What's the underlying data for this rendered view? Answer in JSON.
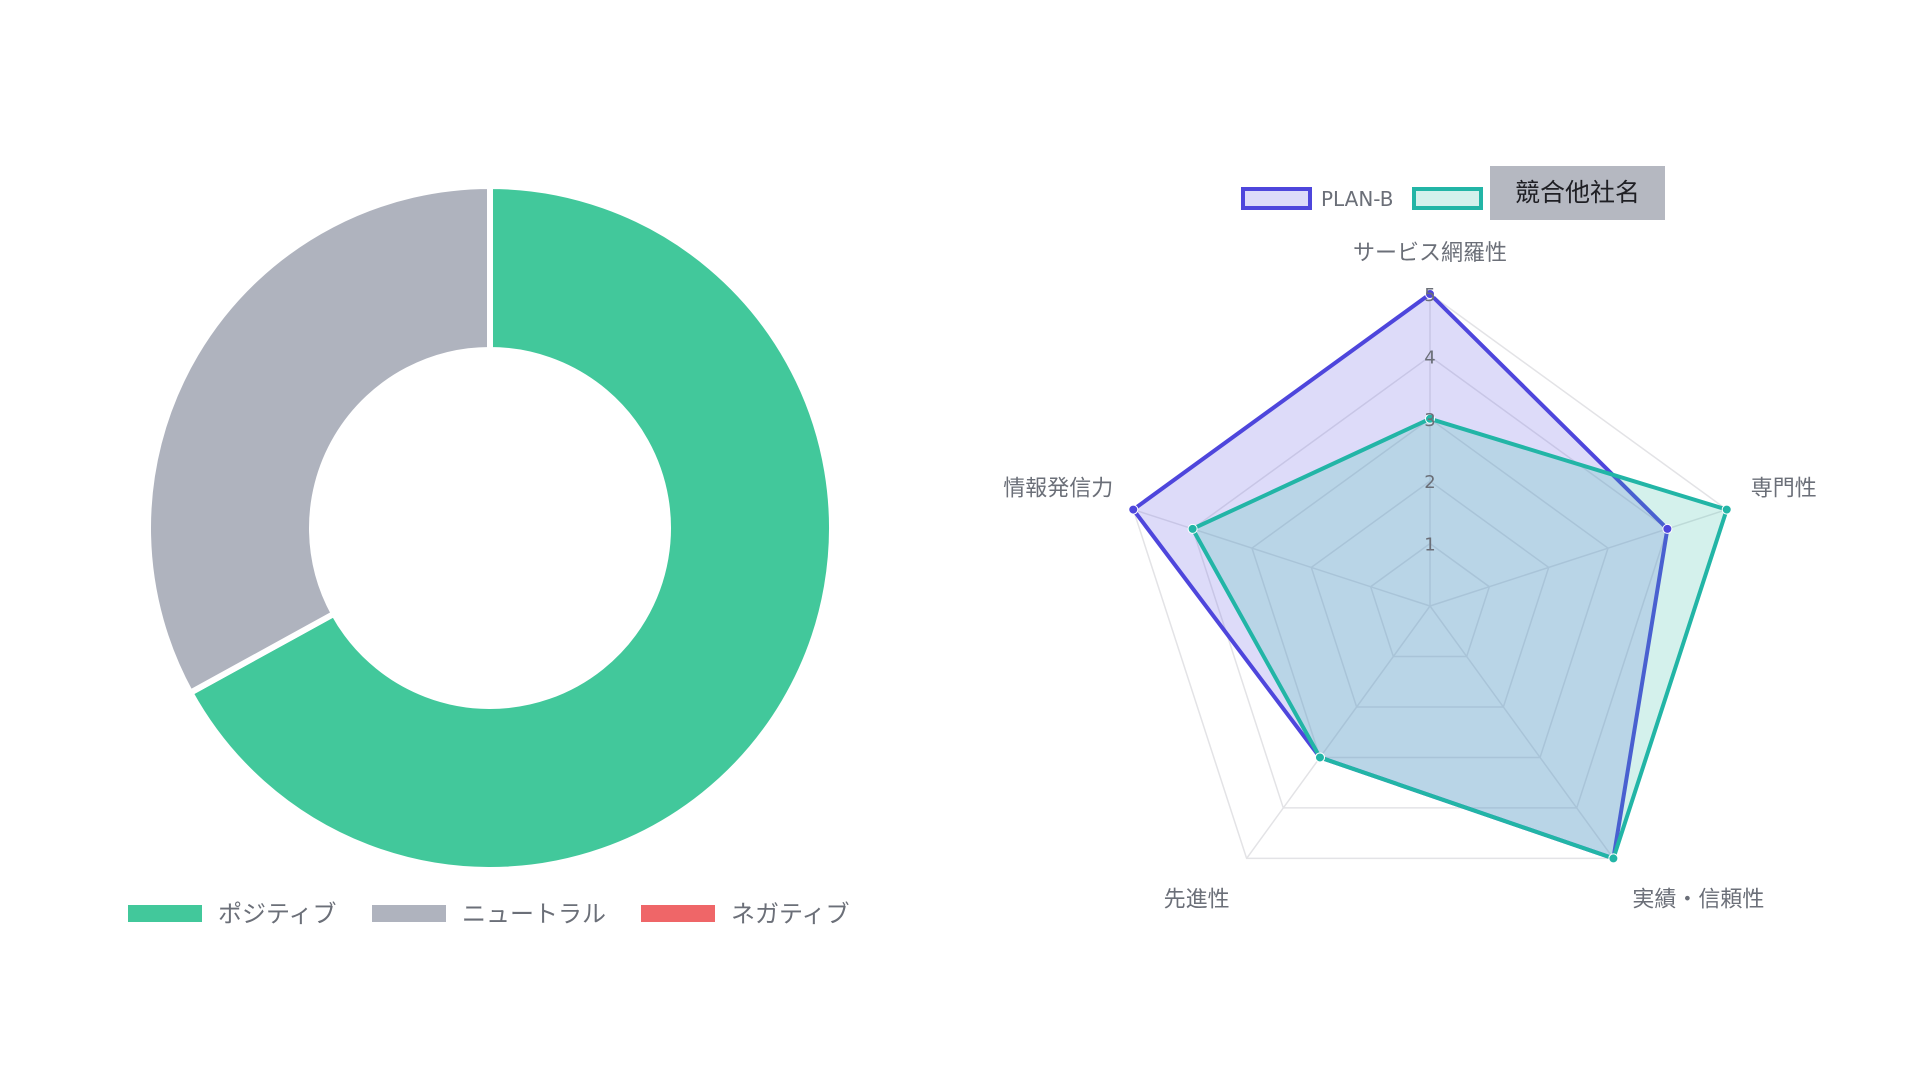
{
  "chart_data": [
    {
      "type": "pie",
      "variant": "doughnut",
      "title": "",
      "series": [
        {
          "name": "ポジティブ",
          "value": 67,
          "color": "#42c89b"
        },
        {
          "name": "ニュートラル",
          "value": 33,
          "color": "#afb3be"
        },
        {
          "name": "ネガティブ",
          "value": 0,
          "color": "#ef6668"
        }
      ],
      "legend": {
        "position": "bottom",
        "items": [
          "ポジティブ",
          "ニュートラル",
          "ネガティブ"
        ]
      }
    },
    {
      "type": "radar",
      "title": "",
      "categories": [
        "サービス網羅性",
        "専門性",
        "実績・信頼性",
        "先進性",
        "情報発信力"
      ],
      "scale": {
        "min": 0,
        "max": 5,
        "ticks": [
          1,
          2,
          3,
          4,
          5
        ]
      },
      "series": [
        {
          "name": "PLAN-B",
          "values": [
            5,
            4,
            5,
            3,
            5
          ],
          "color": "#4e46dc",
          "fill": "rgba(120,110,230,0.25)"
        },
        {
          "name": "競合他社名",
          "values": [
            3,
            5,
            5,
            3,
            4
          ],
          "color": "#22b5a6",
          "fill": "rgba(60,190,170,0.22)"
        }
      ],
      "legend": {
        "position": "top",
        "items": [
          "PLAN-B",
          "競合他社名"
        ]
      },
      "grid": true
    }
  ]
}
